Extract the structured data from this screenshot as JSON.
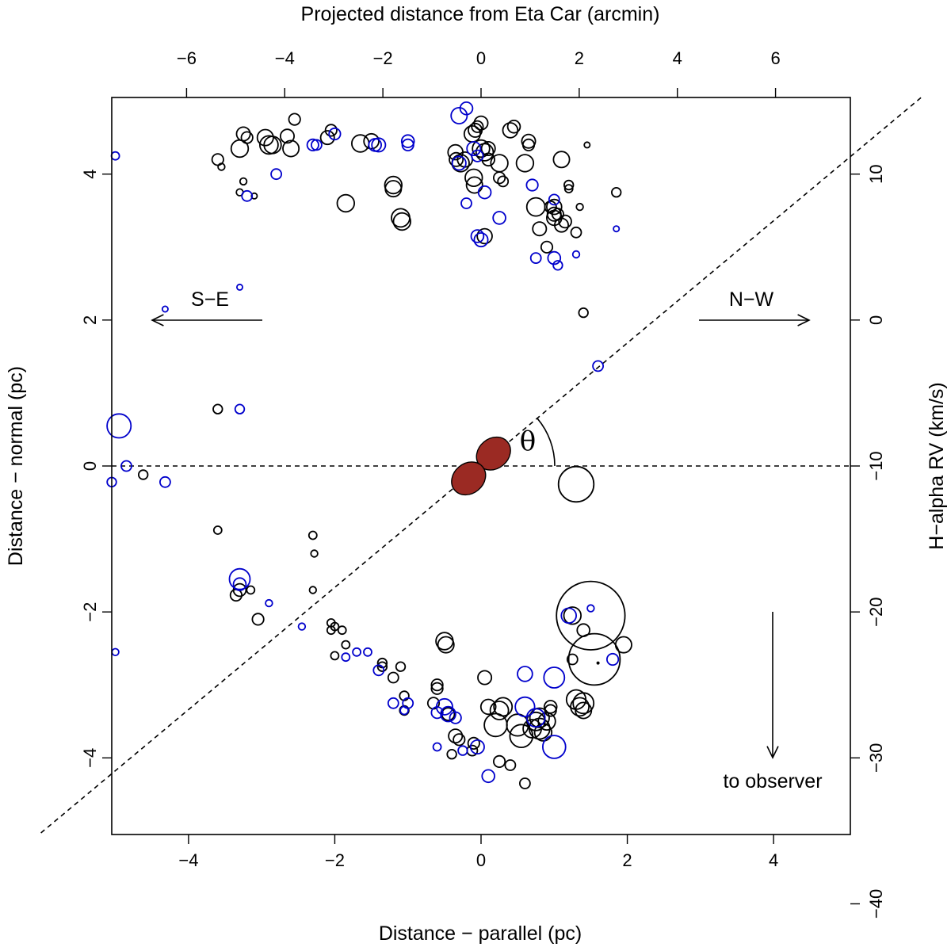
{
  "chart_data": {
    "type": "scatter",
    "xlabel": "Distance − parallel (pc)",
    "ylabel": "Distance − normal (pc)",
    "top_label": "Projected distance from Eta Car (arcmin)",
    "right_label": "H−alpha RV (km/s)",
    "xlim": [
      -5.05,
      5.05
    ],
    "ylim": [
      -5.05,
      5.05
    ],
    "x_ticks": [
      -4,
      -2,
      0,
      2,
      4
    ],
    "y_ticks": [
      -4,
      -2,
      0,
      2,
      4
    ],
    "x_tick_labels": [
      "−4",
      "−2",
      "0",
      "2",
      "4"
    ],
    "y_tick_labels": [
      "−4",
      "−2",
      "0",
      "2",
      "4"
    ],
    "top_ticks_arcmin": [
      -6,
      -4,
      -2,
      0,
      2,
      4,
      6
    ],
    "top_tick_labels": [
      "−6",
      "−4",
      "−2",
      "0",
      "2",
      "4",
      "6"
    ],
    "arcmin_per_pc": 1.49,
    "right_ticks_kms": [
      10,
      0,
      -10,
      -20,
      -30,
      -40
    ],
    "right_tick_labels": [
      "10",
      "0",
      "−10",
      "−20",
      "−30",
      "−40"
    ],
    "rv_zero_at_pc": 2.0,
    "pc_per_kms": 0.2,
    "axis_line_angle_deg": 40,
    "theta_symbol": "θ",
    "annotations": {
      "se": "S−E",
      "nw": "N−W",
      "observer": "to observer"
    },
    "colors": {
      "black_series": "#000000",
      "blue_series": "#0000cc",
      "lobe_fill": "#9b2a23",
      "axes": "#000000"
    },
    "eta_car_lobes": [
      {
        "x": 0.17,
        "y": 0.17
      },
      {
        "x": -0.17,
        "y": -0.17
      }
    ],
    "series": [
      {
        "name": "black",
        "points": [
          [
            -3.2,
            4.5,
            1
          ],
          [
            -3.3,
            4.35,
            1.5
          ],
          [
            -3.25,
            4.55,
            1.2
          ],
          [
            -2.95,
            4.5,
            1.4
          ],
          [
            -2.9,
            4.4,
            1.6
          ],
          [
            -2.85,
            4.4,
            1.5
          ],
          [
            -2.65,
            4.52,
            1.2
          ],
          [
            -2.6,
            4.35,
            1.4
          ],
          [
            -2.55,
            4.75,
            1
          ],
          [
            -2.1,
            4.5,
            1.2
          ],
          [
            -2.05,
            4.6,
            1
          ],
          [
            -1.5,
            4.45,
            1.3
          ],
          [
            -1.65,
            4.42,
            1.5
          ],
          [
            -1.2,
            3.85,
            1.5
          ],
          [
            -1.2,
            3.8,
            1.4
          ],
          [
            -1.1,
            3.4,
            1.6
          ],
          [
            -1.08,
            3.35,
            1.5
          ],
          [
            -0.35,
            4.3,
            1.3
          ],
          [
            -0.34,
            4.2,
            1.2
          ],
          [
            -0.28,
            4.15,
            1.5
          ],
          [
            -0.22,
            4.2,
            1.3
          ],
          [
            -0.12,
            4.55,
            1.4
          ],
          [
            -0.08,
            4.6,
            1.2
          ],
          [
            -0.05,
            4.65,
            1
          ],
          [
            -0.1,
            3.95,
            1.5
          ],
          [
            -0.09,
            3.85,
            1.4
          ],
          [
            0.0,
            4.7,
            1.2
          ],
          [
            0.05,
            4.3,
            1.5
          ],
          [
            0.1,
            4.35,
            1.2
          ],
          [
            0.25,
            3.95,
            1
          ],
          [
            0.3,
            3.9,
            0.9
          ],
          [
            0.05,
            3.15,
            1.3
          ],
          [
            0.0,
            4.35,
            1.5
          ],
          [
            0.1,
            4.2,
            1.1
          ],
          [
            0.25,
            4.15,
            1.5
          ],
          [
            0.4,
            4.6,
            1.3
          ],
          [
            0.45,
            4.65,
            1.1
          ],
          [
            0.6,
            4.15,
            1.5
          ],
          [
            0.65,
            4.45,
            1.2
          ],
          [
            0.65,
            4.4,
            1
          ],
          [
            0.75,
            3.55,
            1.6
          ],
          [
            0.8,
            3.25,
            1.2
          ],
          [
            0.9,
            3.0,
            1
          ],
          [
            1.0,
            3.55,
            1.3
          ],
          [
            1.0,
            3.45,
            1.2
          ],
          [
            1.0,
            3.4,
            1.3
          ],
          [
            0.95,
            3.55,
            1
          ],
          [
            1.1,
            4.2,
            1.4
          ],
          [
            1.05,
            3.45,
            1
          ],
          [
            1.1,
            3.3,
            1.2
          ],
          [
            1.15,
            3.35,
            1.1
          ],
          [
            1.2,
            3.85,
            0.8
          ],
          [
            1.2,
            3.8,
            0.7
          ],
          [
            1.3,
            3.2,
            0.9
          ],
          [
            1.35,
            3.55,
            0.6
          ],
          [
            1.85,
            3.75,
            0.8
          ],
          [
            -3.6,
            4.2,
            1
          ],
          [
            -3.55,
            4.1,
            0.6
          ],
          [
            -3.3,
            3.75,
            0.6
          ],
          [
            -3.25,
            3.9,
            0.6
          ],
          [
            -3.1,
            3.7,
            0.5
          ],
          [
            -1.85,
            3.6,
            1.5
          ],
          [
            1.4,
            2.1,
            0.8
          ],
          [
            1.45,
            4.4,
            0.5
          ],
          [
            -3.6,
            0.78,
            0.8
          ],
          [
            -4.62,
            -0.12,
            0.8
          ],
          [
            -3.6,
            -0.88,
            0.7
          ],
          [
            -2.3,
            -0.95,
            0.7
          ],
          [
            -2.28,
            -1.2,
            0.6
          ],
          [
            -2.3,
            -1.7,
            0.6
          ],
          [
            -3.3,
            -1.7,
            1.1
          ],
          [
            -3.35,
            -1.77,
            1
          ],
          [
            -3.15,
            -1.7,
            0.7
          ],
          [
            -3.05,
            -2.1,
            1
          ],
          [
            -2.05,
            -2.15,
            0.7
          ],
          [
            -2.0,
            -2.2,
            0.7
          ],
          [
            -2.05,
            -2.25,
            0.7
          ],
          [
            -1.9,
            -2.25,
            0.7
          ],
          [
            -1.85,
            -2.45,
            0.7
          ],
          [
            -2.0,
            -2.6,
            0.7
          ],
          [
            -1.35,
            -2.7,
            0.8
          ],
          [
            -1.35,
            -2.75,
            0.8
          ],
          [
            -1.1,
            -2.75,
            0.8
          ],
          [
            -1.2,
            -2.9,
            0.9
          ],
          [
            -1.05,
            -3.15,
            0.8
          ],
          [
            -1.05,
            -3.35,
            0.8
          ],
          [
            -0.6,
            -3.0,
            1
          ],
          [
            -0.6,
            -3.05,
            1
          ],
          [
            -0.65,
            -3.25,
            1
          ],
          [
            -0.5,
            -2.4,
            1.5
          ],
          [
            -0.48,
            -2.45,
            1.4
          ],
          [
            -0.45,
            -3.4,
            1.1
          ],
          [
            -0.35,
            -3.7,
            1.2
          ],
          [
            -0.3,
            -3.75,
            1
          ],
          [
            -0.4,
            -3.95,
            0.8
          ],
          [
            -0.1,
            -3.8,
            1
          ],
          [
            -0.12,
            -3.9,
            0.9
          ],
          [
            0.05,
            -2.9,
            1.2
          ],
          [
            0.1,
            -3.3,
            1.3
          ],
          [
            0.2,
            -3.55,
            2
          ],
          [
            0.25,
            -3.35,
            1.6
          ],
          [
            0.3,
            -3.3,
            1.6
          ],
          [
            0.25,
            -4.05,
            1
          ],
          [
            0.4,
            -4.1,
            0.9
          ],
          [
            0.5,
            -3.55,
            1.9
          ],
          [
            0.55,
            -3.7,
            2
          ],
          [
            0.6,
            -4.35,
            0.9
          ],
          [
            0.7,
            -3.6,
            1.6
          ],
          [
            0.75,
            -3.5,
            1.6
          ],
          [
            0.8,
            -3.6,
            1.8
          ],
          [
            0.8,
            -3.45,
            1.7
          ],
          [
            0.85,
            -3.65,
            1.5
          ],
          [
            0.9,
            -3.5,
            1.5
          ],
          [
            0.95,
            -3.3,
            1.1
          ],
          [
            0.95,
            -3.35,
            1
          ],
          [
            1.3,
            -3.2,
            1.7
          ],
          [
            1.35,
            -3.3,
            1.6
          ],
          [
            1.4,
            -3.25,
            1.8
          ],
          [
            1.4,
            -3.35,
            1.4
          ],
          [
            1.25,
            -2.05,
            1.5
          ],
          [
            1.25,
            -2.65,
            0.9
          ],
          [
            1.4,
            -2.25,
            1.1
          ],
          [
            1.95,
            -2.45,
            1.4
          ],
          [
            1.5,
            -2.05,
            6
          ],
          [
            1.55,
            -2.65,
            4.5
          ],
          [
            1.6,
            -2.7,
            0.15
          ],
          [
            1.3,
            -0.25,
            3.1
          ]
        ]
      },
      {
        "name": "blue",
        "points": [
          [
            -5.0,
            4.25,
            0.7
          ],
          [
            -2.8,
            4.0,
            0.9
          ],
          [
            -2.3,
            4.4,
            1
          ],
          [
            -2.25,
            4.4,
            0.9
          ],
          [
            -2.0,
            4.55,
            1
          ],
          [
            -1.4,
            4.4,
            1.2
          ],
          [
            -1.45,
            4.4,
            1.1
          ],
          [
            -1.0,
            4.45,
            1.1
          ],
          [
            -1.0,
            4.4,
            1
          ],
          [
            -0.3,
            4.15,
            1.2
          ],
          [
            -0.3,
            4.8,
            1.4
          ],
          [
            -0.2,
            4.9,
            1.1
          ],
          [
            -0.1,
            4.35,
            1.2
          ],
          [
            -0.05,
            4.25,
            1
          ],
          [
            -0.2,
            3.6,
            0.9
          ],
          [
            -0.05,
            3.15,
            1.1
          ],
          [
            0.0,
            3.1,
            1.2
          ],
          [
            -3.2,
            3.7,
            0.9
          ],
          [
            0.05,
            3.75,
            1.1
          ],
          [
            0.25,
            3.4,
            1.1
          ],
          [
            0.7,
            3.85,
            1
          ],
          [
            1.0,
            3.65,
            0.9
          ],
          [
            0.75,
            2.85,
            0.9
          ],
          [
            1.0,
            2.85,
            1.1
          ],
          [
            1.05,
            2.75,
            0.8
          ],
          [
            1.3,
            2.9,
            0.6
          ],
          [
            1.85,
            3.25,
            0.5
          ],
          [
            -4.95,
            0.55,
            2.1
          ],
          [
            -4.85,
            0.0,
            0.9
          ],
          [
            -5.05,
            -0.22,
            0.8
          ],
          [
            -4.32,
            -0.22,
            0.9
          ],
          [
            -3.3,
            0.78,
            0.8
          ],
          [
            -3.3,
            2.45,
            0.5
          ],
          [
            -4.32,
            2.15,
            0.5
          ],
          [
            1.6,
            1.37,
            0.9
          ],
          [
            -3.3,
            -1.55,
            1.8
          ],
          [
            -3.3,
            -1.62,
            1.1
          ],
          [
            -2.9,
            -1.88,
            0.6
          ],
          [
            -2.45,
            -2.2,
            0.6
          ],
          [
            -5.0,
            -2.55,
            0.6
          ],
          [
            -1.85,
            -2.62,
            0.7
          ],
          [
            -1.7,
            -2.55,
            0.7
          ],
          [
            -1.55,
            -2.55,
            0.7
          ],
          [
            -1.4,
            -2.8,
            0.9
          ],
          [
            -1.2,
            -3.25,
            0.9
          ],
          [
            -1.0,
            -3.25,
            0.9
          ],
          [
            -1.05,
            -3.35,
            0.7
          ],
          [
            -0.6,
            -3.38,
            1
          ],
          [
            -0.5,
            -3.3,
            1.4
          ],
          [
            -0.45,
            -3.4,
            1.3
          ],
          [
            -0.35,
            -3.45,
            1
          ],
          [
            -0.25,
            -3.9,
            0.8
          ],
          [
            -0.05,
            -3.85,
            1.2
          ],
          [
            -0.6,
            -3.85,
            0.7
          ],
          [
            0.1,
            -4.25,
            1.1
          ],
          [
            0.6,
            -2.85,
            1.3
          ],
          [
            0.6,
            -3.3,
            1.7
          ],
          [
            0.75,
            -3.45,
            1.6
          ],
          [
            1.0,
            -2.9,
            1.8
          ],
          [
            1.0,
            -3.85,
            2
          ],
          [
            1.2,
            -2.05,
            1.3
          ],
          [
            1.5,
            -1.95,
            0.6
          ],
          [
            1.8,
            -2.65,
            1
          ]
        ]
      }
    ]
  }
}
